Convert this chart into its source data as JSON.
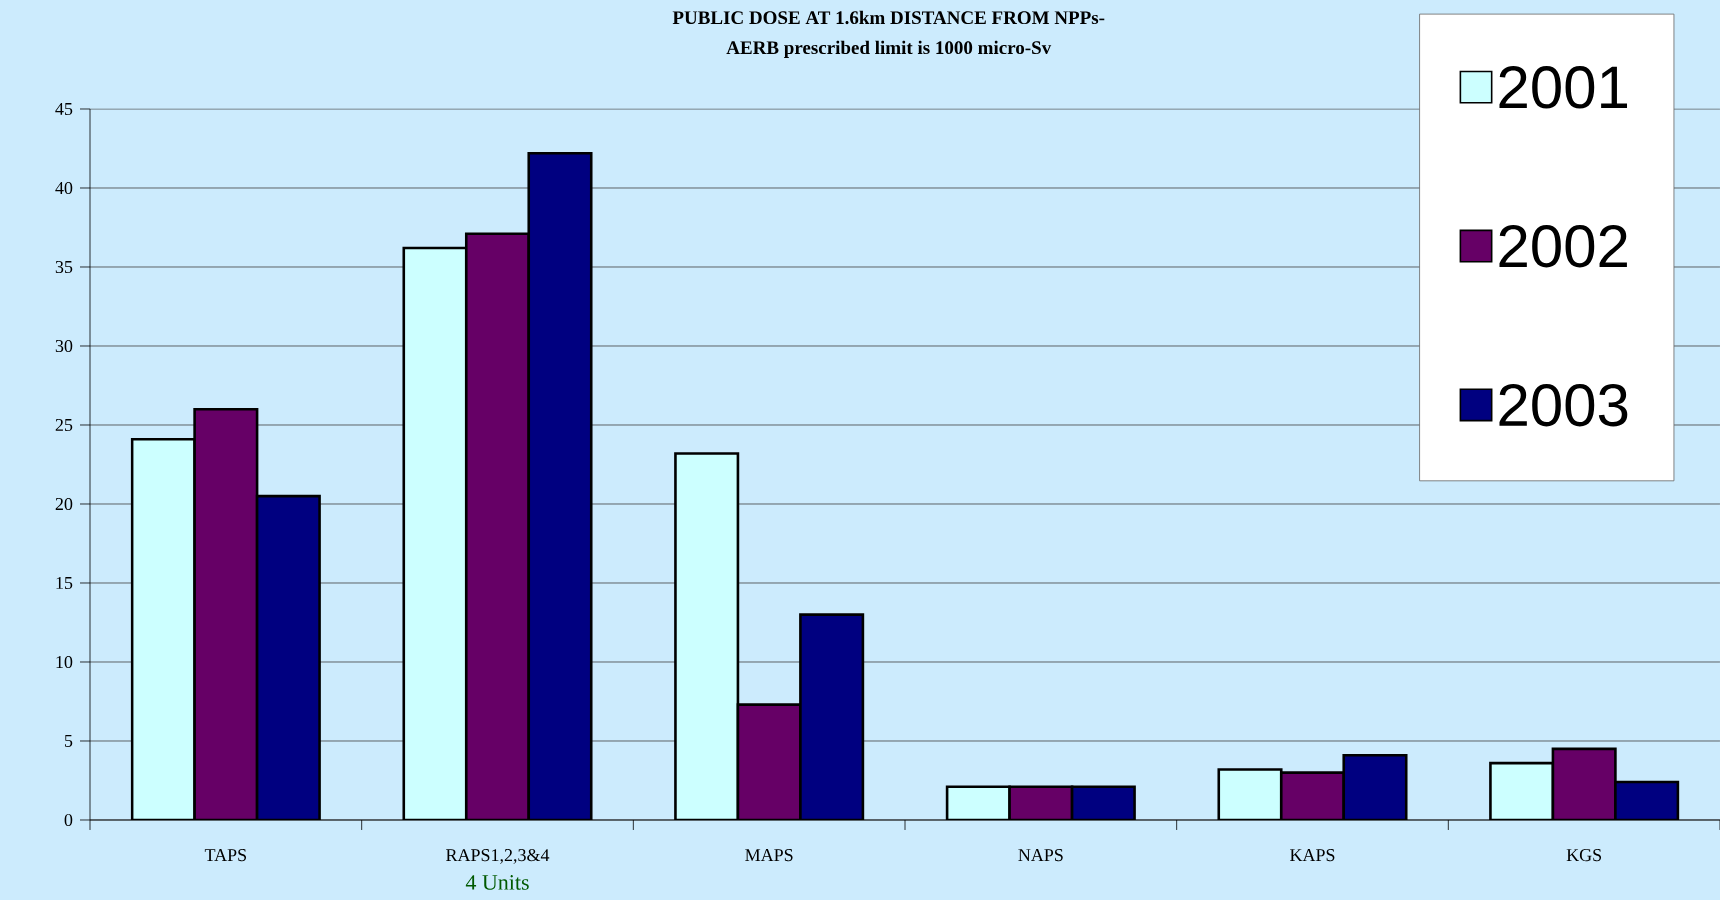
{
  "chart_data": {
    "type": "bar",
    "title": "PUBLIC DOSE AT 1.6km DISTANCE FROM NPPs-",
    "subtitle": "AERB prescribed limit is 1000 micro-Sv",
    "categories": [
      "TAPS",
      "RAPS1,2,3&4",
      "MAPS",
      "NAPS",
      "KAPS",
      "KGS"
    ],
    "series": [
      {
        "name": "2001",
        "color": "#ccffff",
        "values": [
          24.1,
          36.2,
          23.2,
          2.1,
          3.2,
          3.6
        ]
      },
      {
        "name": "2002",
        "color": "#660066",
        "values": [
          26.0,
          37.1,
          7.3,
          2.1,
          3.0,
          4.5
        ]
      },
      {
        "name": "2003",
        "color": "#000080",
        "values": [
          20.5,
          42.2,
          13.0,
          2.1,
          4.1,
          2.4
        ]
      }
    ],
    "ylim": [
      0,
      45
    ],
    "yticks": [
      0,
      5,
      10,
      15,
      20,
      25,
      30,
      35,
      40,
      45
    ],
    "grid": "y",
    "legend": "top right",
    "annotations": [
      "4 Units"
    ]
  }
}
